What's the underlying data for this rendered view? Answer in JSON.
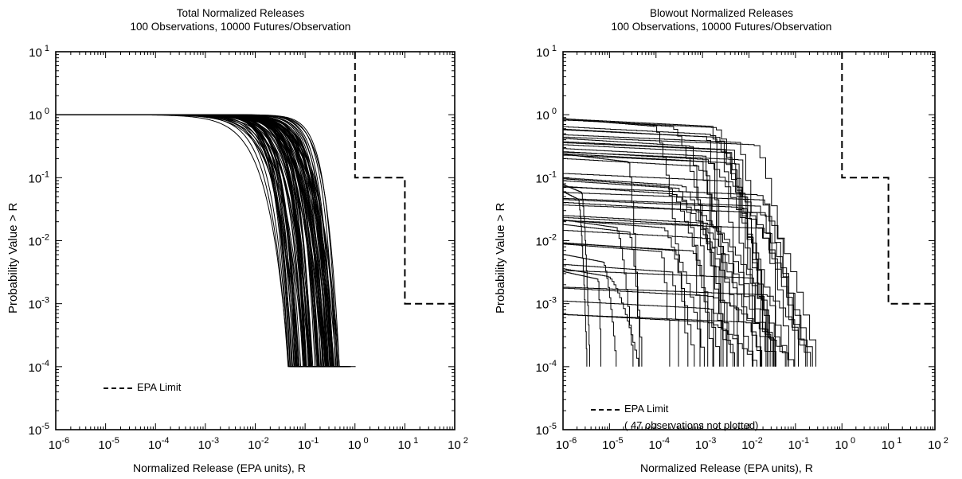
{
  "chart_data": [
    {
      "type": "line",
      "title": "Total Normalized Releases",
      "subtitle": "100 Observations, 10000 Futures/Observation",
      "xlabel": "Normalized Release (EPA units), R",
      "ylabel": "Probability Value > R",
      "xscale": "log",
      "yscale": "log",
      "xlim": [
        1e-06,
        100
      ],
      "ylim": [
        1e-05,
        10
      ],
      "x_ticks": [
        "10-6",
        "10-5",
        "10-4",
        "10-3",
        "10-2",
        "10-1",
        "10 0",
        "10 1",
        "10 2"
      ],
      "y_ticks": [
        "10-5",
        "10-4",
        "10-3",
        "10-2",
        "10-1",
        "10 0",
        "10 1"
      ],
      "legend": {
        "position": "bottom-left",
        "entries": [
          "EPA Limit"
        ]
      },
      "epa_limit": {
        "name": "EPA Limit",
        "x": [
          1,
          1,
          10,
          10,
          100
        ],
        "y": [
          10,
          0.1,
          0.1,
          0.001,
          0.001
        ]
      },
      "ccdf_curves": {
        "count": 100,
        "p_start": 1.0,
        "p_end": 0.0001,
        "x_at_min_probability_range": [
          0.045,
          0.5
        ]
      }
    },
    {
      "type": "line",
      "title": "Blowout Normalized Releases",
      "subtitle": "100 Observations, 10000 Futures/Observation",
      "xlabel": "Normalized Release (EPA units), R",
      "ylabel": "Probability Value > R",
      "xscale": "log",
      "yscale": "log",
      "xlim": [
        1e-06,
        100
      ],
      "ylim": [
        1e-05,
        10
      ],
      "x_ticks": [
        "10-6",
        "10-5",
        "10-4",
        "10-3",
        "10-2",
        "10-1",
        "10 0",
        "10 1",
        "10 2"
      ],
      "y_ticks": [
        "10-5",
        "10-4",
        "10-3",
        "10-2",
        "10-1",
        "10 0",
        "10 1"
      ],
      "legend": {
        "position": "bottom-left",
        "entries": [
          "EPA Limit"
        ]
      },
      "annotation": "( 47 observations not plotted)",
      "epa_limit": {
        "name": "EPA Limit",
        "x": [
          1,
          1,
          10,
          10,
          100
        ],
        "y": [
          10,
          0.1,
          0.1,
          0.001,
          0.001
        ]
      },
      "ccdf_curves": {
        "count": 53,
        "p_start_range": [
          0.0002,
          1.0
        ],
        "p_end": 0.0001,
        "x_at_min_probability_range": [
          1e-06,
          0.3
        ]
      }
    }
  ]
}
